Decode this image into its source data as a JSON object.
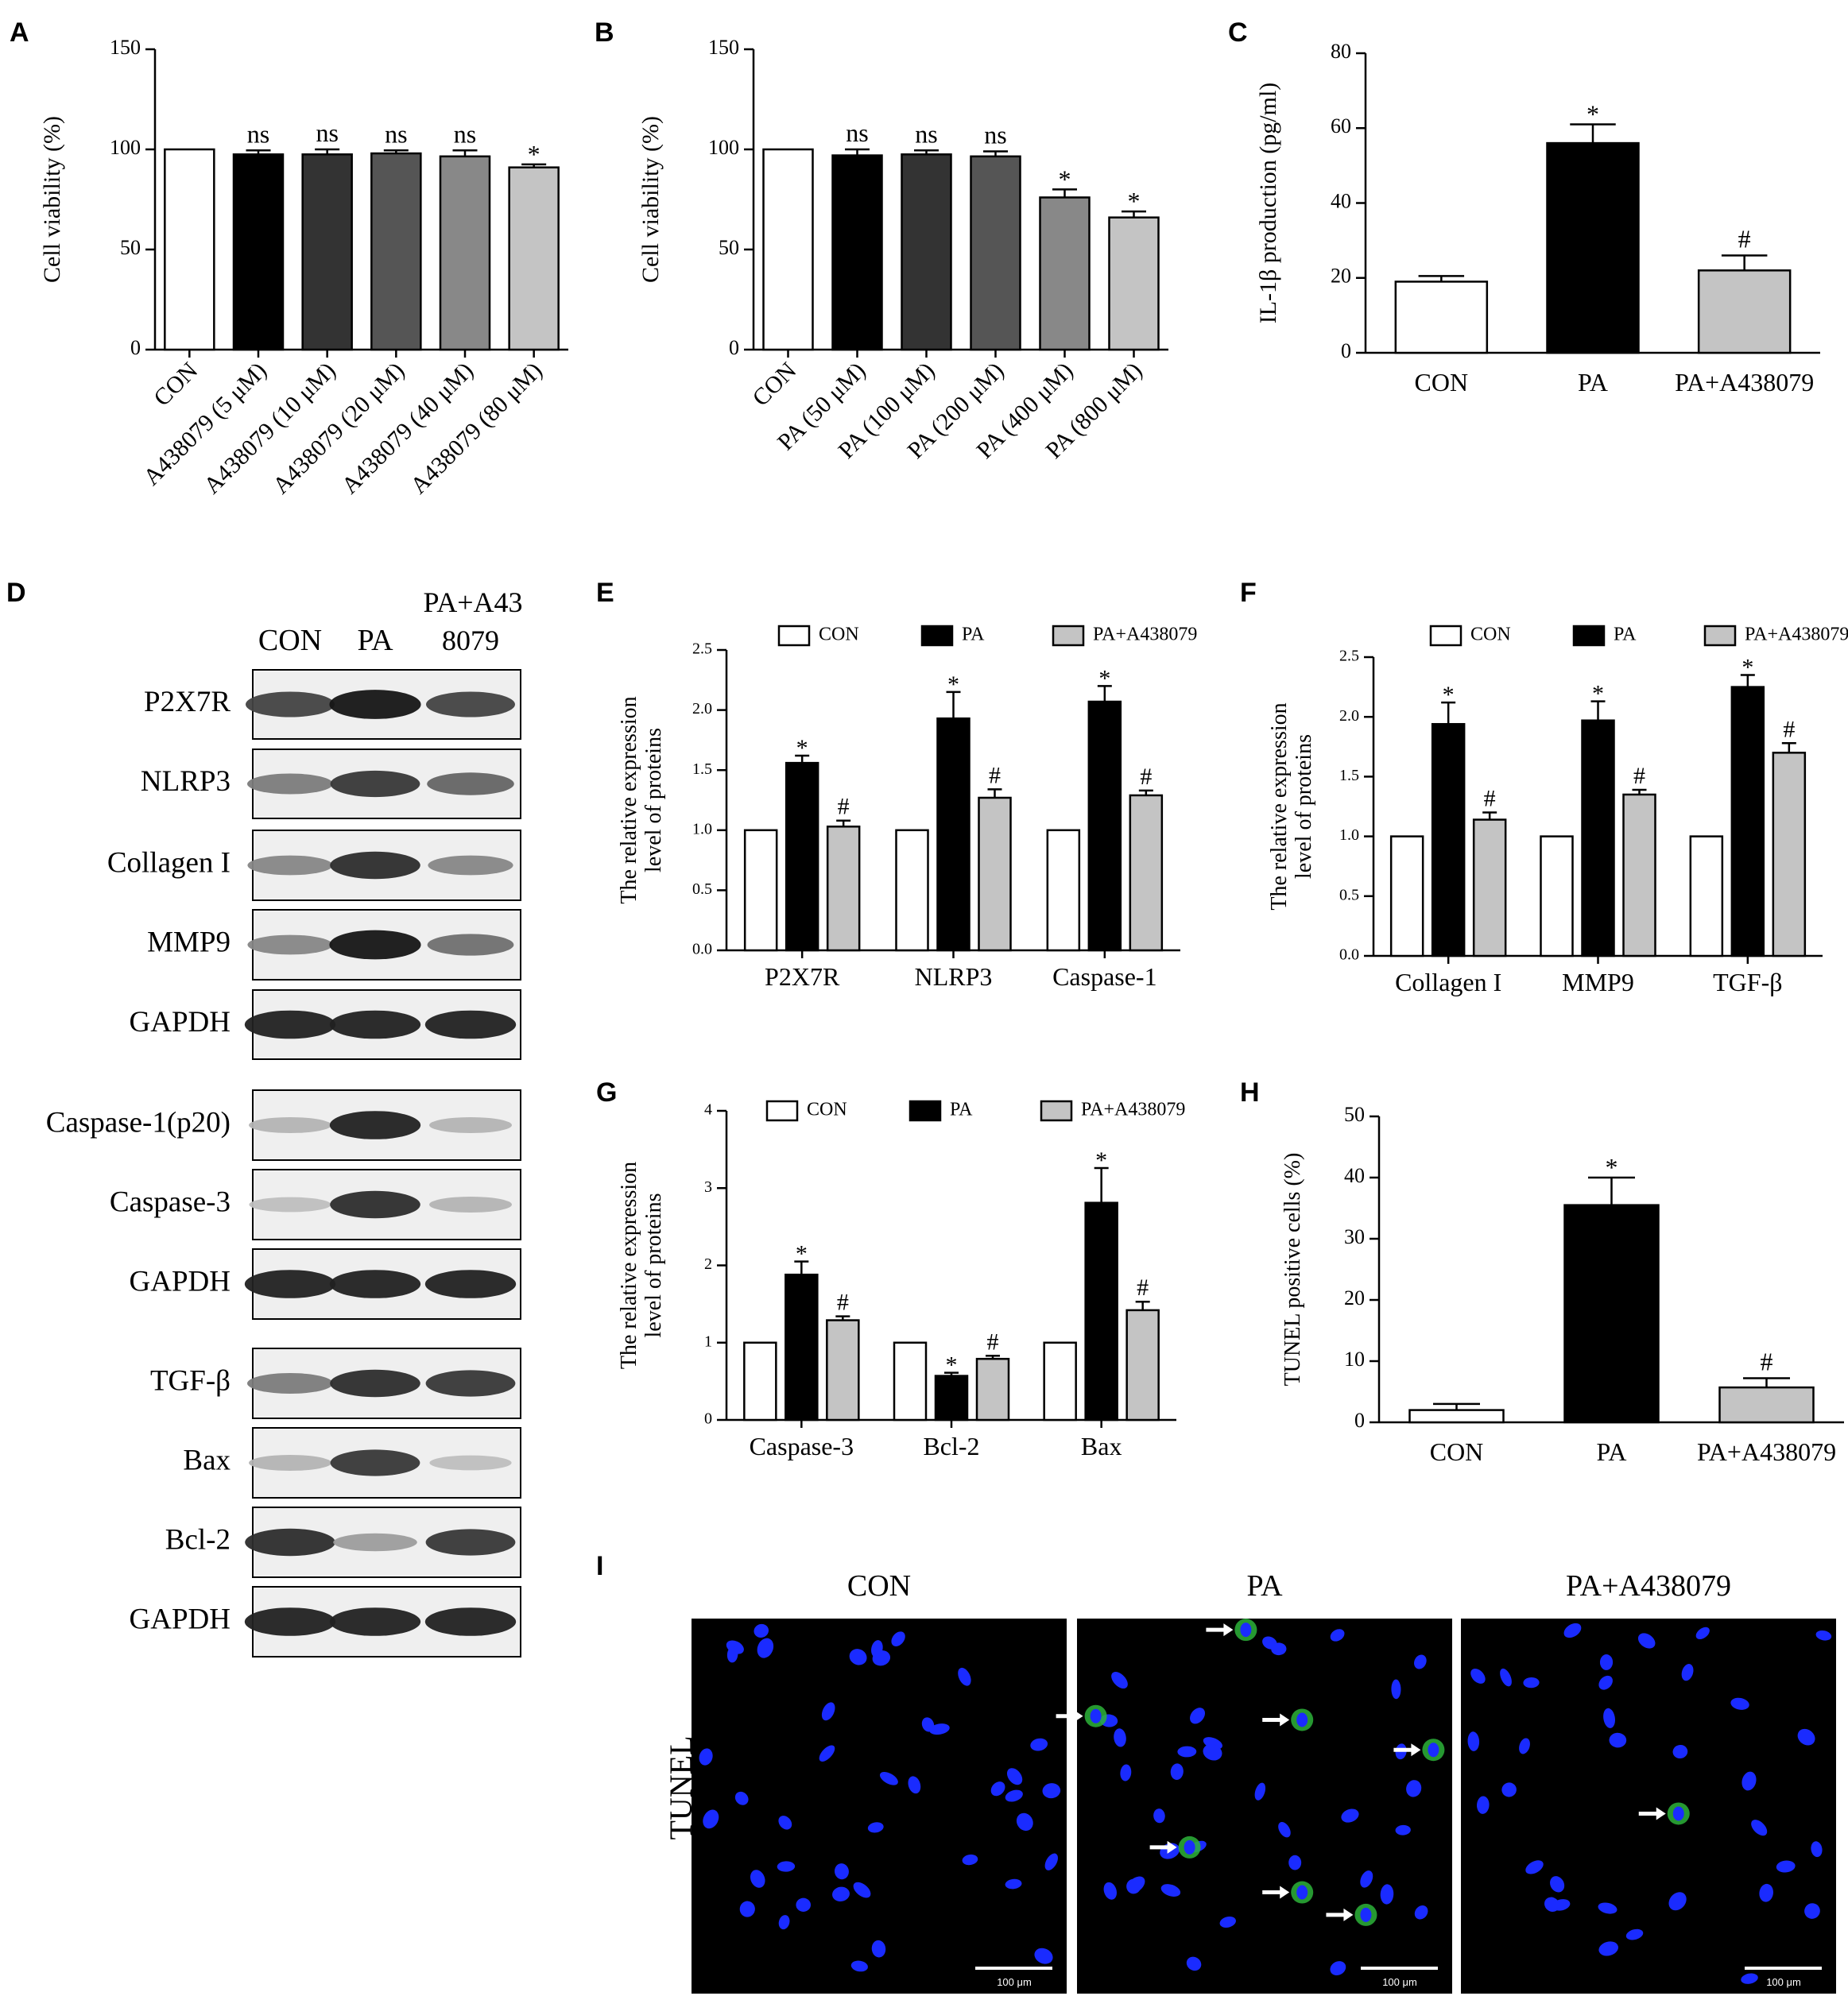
{
  "panel_letters": [
    "A",
    "B",
    "C",
    "D",
    "E",
    "F",
    "G",
    "H",
    "I"
  ],
  "chart_data": [
    {
      "id": "A",
      "type": "bar",
      "ylabel": "Cell viability (%)",
      "xlabel": "",
      "ylim": [
        0,
        150
      ],
      "yticks": [
        0,
        50,
        100,
        150
      ],
      "categories": [
        "CON",
        "A438079 (5 μM)",
        "A438079 (10 μM)",
        "A438079 (20 μM)",
        "A438079 (40 μM)",
        "A438079 (80 μM)"
      ],
      "values": [
        100,
        97.5,
        97.5,
        98,
        96.5,
        91
      ],
      "errors": [
        0,
        2,
        2.5,
        1.5,
        3,
        1.5
      ],
      "fills": [
        "#ffffff",
        "#000000",
        "#333333",
        "#555555",
        "#888888",
        "#c4c4c4"
      ],
      "labels": [
        "",
        "ns",
        "ns",
        "ns",
        "ns",
        "*"
      ],
      "legend": [],
      "grid": false
    },
    {
      "id": "B",
      "type": "bar",
      "ylabel": "Cell viability (%)",
      "xlabel": "",
      "ylim": [
        0,
        150
      ],
      "yticks": [
        0,
        50,
        100,
        150
      ],
      "categories": [
        "CON",
        "PA (50 μM)",
        "PA (100 μM)",
        "PA (200 μM)",
        "PA (400 μM)",
        "PA (800 μM)"
      ],
      "values": [
        100,
        97,
        97.5,
        96.5,
        76,
        66
      ],
      "errors": [
        0,
        3,
        2,
        2.5,
        4,
        3
      ],
      "fills": [
        "#ffffff",
        "#000000",
        "#333333",
        "#555555",
        "#888888",
        "#c4c4c4"
      ],
      "labels": [
        "",
        "ns",
        "ns",
        "ns",
        "*",
        "*"
      ],
      "legend": [],
      "grid": false
    },
    {
      "id": "C",
      "type": "bar",
      "ylabel": "IL-1β production (pg/ml)",
      "xlabel": "",
      "ylim": [
        0,
        80
      ],
      "yticks": [
        0,
        20,
        40,
        60,
        80
      ],
      "categories": [
        "CON",
        "PA",
        "PA+A438079"
      ],
      "values": [
        19,
        56,
        22
      ],
      "errors": [
        1.5,
        5,
        4
      ],
      "fills": [
        "#ffffff",
        "#000000",
        "#c4c4c4"
      ],
      "labels": [
        "",
        "*",
        "#"
      ],
      "legend": [],
      "grid": false
    },
    {
      "id": "E",
      "type": "bar",
      "ylabel": [
        "The relative expression",
        "level of proteins"
      ],
      "xlabel": "",
      "ylim": [
        0,
        2.5
      ],
      "yticks": [
        "0.0",
        "0.5",
        "1.0",
        "1.5",
        "2.0",
        "2.5"
      ],
      "categories": [
        "P2X7R",
        "NLRP3",
        "Caspase-1"
      ],
      "series": [
        {
          "name": "CON",
          "values": [
            1.0,
            1.0,
            1.0
          ],
          "errors": [
            0,
            0,
            0
          ],
          "fill": "#ffffff",
          "labels": [
            "",
            "",
            ""
          ]
        },
        {
          "name": "PA",
          "values": [
            1.56,
            1.93,
            2.07
          ],
          "errors": [
            0.06,
            0.22,
            0.13
          ],
          "fill": "#000000",
          "labels": [
            "*",
            "*",
            "*"
          ]
        },
        {
          "name": "PA+A438079",
          "values": [
            1.03,
            1.27,
            1.29
          ],
          "errors": [
            0.05,
            0.07,
            0.04
          ],
          "fill": "#c4c4c4",
          "labels": [
            "#",
            "#",
            "#"
          ]
        }
      ],
      "legend": "top",
      "grid": false
    },
    {
      "id": "F",
      "type": "bar",
      "ylabel": [
        "The relative expression",
        "level of proteins"
      ],
      "xlabel": "",
      "ylim": [
        0,
        2.5
      ],
      "yticks": [
        "0.0",
        "0.5",
        "1.0",
        "1.5",
        "2.0",
        "2.5"
      ],
      "categories": [
        "Collagen I",
        "MMP9",
        "TGF-β"
      ],
      "series": [
        {
          "name": "CON",
          "values": [
            1.0,
            1.0,
            1.0
          ],
          "errors": [
            0,
            0,
            0
          ],
          "fill": "#ffffff",
          "labels": [
            "",
            "",
            ""
          ]
        },
        {
          "name": "PA",
          "values": [
            1.94,
            1.97,
            2.25
          ],
          "errors": [
            0.18,
            0.16,
            0.1
          ],
          "fill": "#000000",
          "labels": [
            "*",
            "*",
            "*"
          ]
        },
        {
          "name": "PA+A438079",
          "values": [
            1.14,
            1.35,
            1.7
          ],
          "errors": [
            0.06,
            0.04,
            0.08
          ],
          "fill": "#c4c4c4",
          "labels": [
            "#",
            "#",
            "#"
          ]
        }
      ],
      "legend": "top",
      "grid": false
    },
    {
      "id": "G",
      "type": "bar",
      "ylabel": [
        "The relative expression",
        "level of proteins"
      ],
      "xlabel": "",
      "ylim": [
        0,
        4
      ],
      "yticks": [
        "0",
        "1",
        "2",
        "3",
        "4"
      ],
      "categories": [
        "Caspase-3",
        "Bcl-2",
        "Bax"
      ],
      "series": [
        {
          "name": "CON",
          "values": [
            1.0,
            1.0,
            1.0
          ],
          "errors": [
            0,
            0,
            0
          ],
          "fill": "#ffffff",
          "labels": [
            "",
            "",
            ""
          ]
        },
        {
          "name": "PA",
          "values": [
            1.88,
            0.57,
            2.81
          ],
          "errors": [
            0.17,
            0.04,
            0.45
          ],
          "fill": "#000000",
          "labels": [
            "*",
            "*",
            "*"
          ]
        },
        {
          "name": "PA+A438079",
          "values": [
            1.29,
            0.79,
            1.42
          ],
          "errors": [
            0.05,
            0.04,
            0.11
          ],
          "fill": "#c4c4c4",
          "labels": [
            "#",
            "#",
            "#"
          ]
        }
      ],
      "legend": "top",
      "grid": false
    },
    {
      "id": "H",
      "type": "bar",
      "ylabel": "TUNEL positive cells (%)",
      "xlabel": "",
      "ylim": [
        0,
        50
      ],
      "yticks": [
        0,
        10,
        20,
        30,
        40,
        50
      ],
      "categories": [
        "CON",
        "PA",
        "PA+A438079"
      ],
      "values": [
        2,
        35.5,
        5.7
      ],
      "errors": [
        1,
        4.5,
        1.5
      ],
      "fills": [
        "#ffffff",
        "#000000",
        "#c4c4c4"
      ],
      "labels": [
        "",
        "*",
        "#"
      ],
      "legend": [],
      "grid": false
    }
  ],
  "western_blot": {
    "header_columns": [
      "CON",
      "PA"
    ],
    "header_third_column": [
      "PA+A43",
      "8079"
    ],
    "bands": [
      {
        "label": "P2X7R",
        "intensity": [
          0.75,
          0.95,
          0.75
        ]
      },
      {
        "label": "NLRP3",
        "intensity": [
          0.5,
          0.8,
          0.6
        ]
      },
      {
        "label": "Collagen I",
        "intensity": [
          0.45,
          0.85,
          0.45
        ]
      },
      {
        "label": "MMP9",
        "intensity": [
          0.45,
          0.95,
          0.55
        ]
      },
      {
        "label": "GAPDH",
        "intensity": [
          0.9,
          0.9,
          0.9
        ]
      },
      {
        "label": "Caspase-1(p20)",
        "intensity": [
          0.25,
          0.9,
          0.25
        ]
      },
      {
        "label": "Caspase-3",
        "intensity": [
          0.2,
          0.85,
          0.25
        ]
      },
      {
        "label": "GAPDH",
        "intensity": [
          0.9,
          0.9,
          0.9
        ]
      },
      {
        "label": "TGF-β",
        "intensity": [
          0.5,
          0.85,
          0.8
        ]
      },
      {
        "label": "Bax",
        "intensity": [
          0.25,
          0.8,
          0.2
        ]
      },
      {
        "label": "Bcl-2",
        "intensity": [
          0.85,
          0.35,
          0.8
        ]
      },
      {
        "label": "GAPDH",
        "intensity": [
          0.9,
          0.9,
          0.9
        ]
      }
    ]
  },
  "tunel": {
    "row_label": "TUNEL",
    "columns": [
      "CON",
      "PA",
      "PA+A438079"
    ],
    "scale_bar_text": "100 μm",
    "colors": {
      "background": "#000000",
      "nucleus": "#1a2bff",
      "tunel": "#2db33a",
      "arrow": "#ffffff"
    }
  }
}
